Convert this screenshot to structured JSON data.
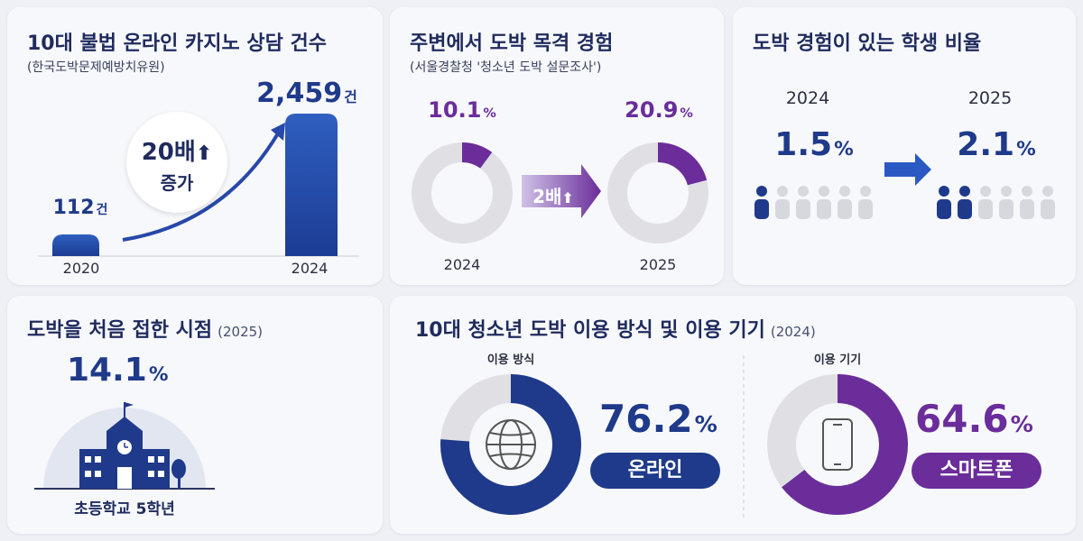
{
  "card1": {
    "title": "10대 불법 온라인 카지노 상담 건수",
    "source": "(한국도박문제예방치유원)",
    "badge_value": "20배",
    "badge_text": "증가",
    "unit": "건",
    "value_labels": [
      "112",
      "2,459"
    ],
    "arrow_icon": "up-arrow-icon"
  },
  "card2": {
    "title": "주변에서 도박 목격 경험",
    "source": "(서울경찰청 '청소년 도박 설문조사')",
    "multiplier": "2배",
    "value_labels": [
      "10.1",
      "20.9"
    ],
    "unit": "%"
  },
  "card3": {
    "title": "도박 경험이 있는 학생 비율",
    "value_labels": [
      "1.5",
      "2.1"
    ],
    "unit": "%",
    "people_icon": "person-icon"
  },
  "card4": {
    "title": "도박을 처음 접한 시점",
    "year": "(2025)",
    "value": "14.1",
    "unit": "%",
    "caption": "초등학교 5학년",
    "icon": "school-building-icon"
  },
  "card5": {
    "title": "10대 청소년 도박 이용 방식 및 이용 기기",
    "year": "(2024)",
    "left_label": "이용 방식",
    "left_value": "76.2",
    "left_pill": "온라인",
    "left_icon": "globe-icon",
    "right_label": "이용 기기",
    "right_value": "64.6",
    "right_pill": "스마트폰",
    "right_icon": "smartphone-icon",
    "unit": "%"
  },
  "colors": {
    "navy": "#1f3a8a",
    "purple": "#6a2d9a",
    "gray": "#e0e0e4"
  },
  "chart_data": [
    {
      "type": "bar",
      "title": "10대 불법 온라인 카지노 상담 건수",
      "categories": [
        "2020",
        "2024"
      ],
      "values": [
        112,
        2459
      ]
    },
    {
      "type": "pie",
      "title": "주변에서 도박 목격 경험",
      "categories": [
        "2024",
        "2025"
      ],
      "values": [
        10.1,
        20.9
      ]
    },
    {
      "type": "bar",
      "title": "도박 경험이 있는 학생 비율",
      "categories": [
        "2024",
        "2025"
      ],
      "values": [
        1.5,
        2.1
      ]
    },
    {
      "type": "pie",
      "title": "10대 청소년 도박 이용 방식 및 이용 기기",
      "categories": [
        "이용 방식",
        "이용 기기"
      ],
      "values": [
        76.2,
        64.6
      ]
    }
  ]
}
